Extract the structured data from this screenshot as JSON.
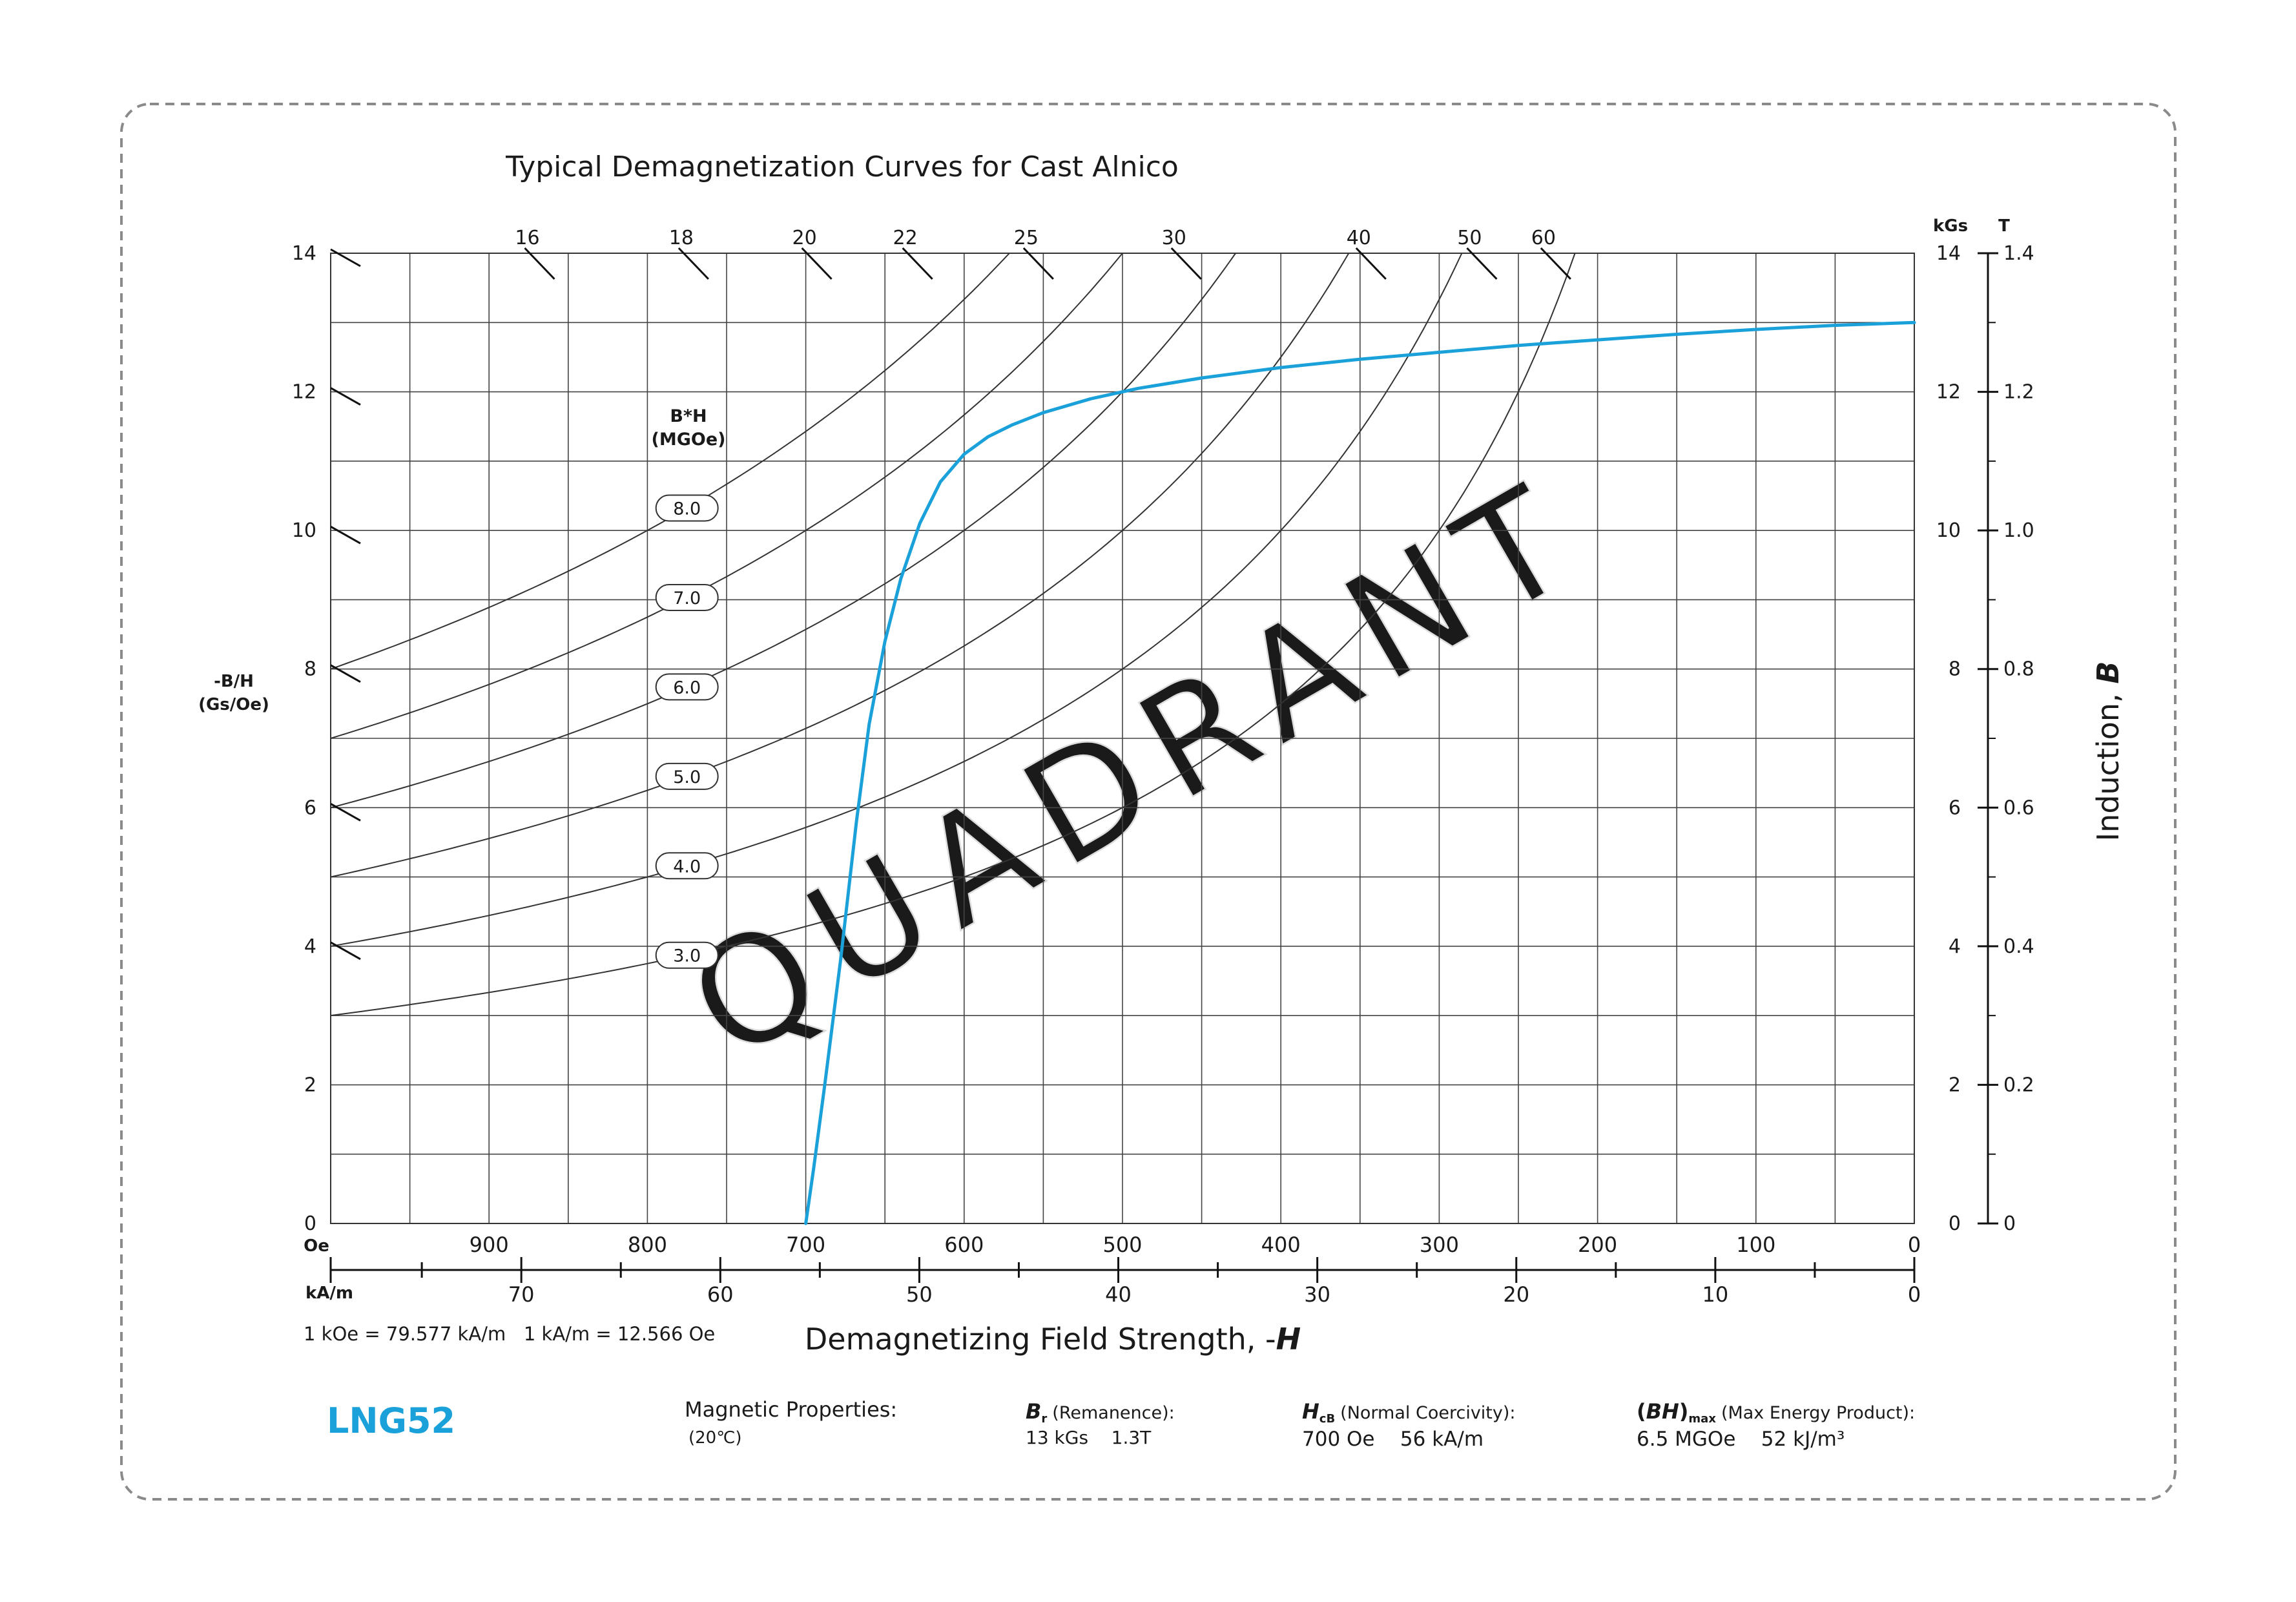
{
  "chart_data": {
    "type": "line",
    "title": "Typical Demagnetization Curves for Cast Alnico",
    "xlabel_text": "Demagnetizing Field Strength, -",
    "xlabel_symbol": "H",
    "ylabel_text": "Induction, ",
    "ylabel_symbol": "B",
    "x_unit_oe": "Oe",
    "x_unit_ka": "kA/m",
    "x_ticks_oe": [
      900,
      800,
      700,
      600,
      500,
      400,
      300,
      200,
      100,
      0
    ],
    "x_ticks_ka": [
      70,
      60,
      50,
      40,
      30,
      20,
      10,
      0
    ],
    "xlim_oe": [
      1000,
      0
    ],
    "y_unit_left_label": "-B/H",
    "y_unit_left_sub": "(Gs/Oe)",
    "y_unit_kgs": "kGs",
    "y_unit_t": "T",
    "y_ticks_kgs": [
      0,
      2,
      4,
      6,
      8,
      10,
      12,
      14
    ],
    "y_ticks_left": [
      0,
      2,
      4,
      6,
      8,
      10,
      12,
      14
    ],
    "y_ticks_t": [
      "0",
      "0.2",
      "0.4",
      "0.6",
      "0.8",
      "1.0",
      "1.2",
      "1.4"
    ],
    "ylim_kgs": [
      0,
      14
    ],
    "grid": true,
    "permeance_top_labels": [
      "16",
      "18",
      "20",
      "22",
      "25",
      "30",
      "40",
      "50",
      "60"
    ],
    "permeance_slopes": [
      16,
      18,
      20,
      22,
      25,
      30,
      40,
      50,
      60
    ],
    "permeance_left_slopes": [
      14,
      12,
      10,
      8,
      6,
      4
    ],
    "bh_header": "B*H",
    "bh_header_sub": "(MGOe)",
    "bh_labels": [
      "8.0",
      "7.0",
      "6.0",
      "5.0",
      "4.0",
      "3.0"
    ],
    "bh_values": [
      8.0,
      7.0,
      6.0,
      5.0,
      4.0,
      3.0
    ],
    "series": [
      {
        "color": "#1BA1DA",
        "x_oe": [
          700,
          695,
          688,
          678,
          668,
          660,
          650,
          640,
          628,
          615,
          600,
          585,
          570,
          550,
          520,
          490,
          450,
          400,
          350,
          300,
          250,
          200,
          150,
          100,
          50,
          0
        ],
        "y_kgs": [
          0,
          0.8,
          2.0,
          3.8,
          5.8,
          7.2,
          8.4,
          9.3,
          10.1,
          10.7,
          11.1,
          11.35,
          11.52,
          11.7,
          11.9,
          12.05,
          12.2,
          12.35,
          12.47,
          12.57,
          12.67,
          12.75,
          12.83,
          12.9,
          12.96,
          13.0
        ]
      }
    ],
    "watermark": "QUADRANT"
  },
  "conversion_note": "1 kOe = 79.577 kA/m   1 kA/m = 12.566 Oe",
  "material": {
    "name": "LNG52",
    "name_color": "#1BA1DA"
  },
  "properties": {
    "header": "Magnetic Properties:",
    "temperature": "(20℃)",
    "br_symbol": "B",
    "br_sub": "r",
    "br_label": "(Remanence):",
    "br_value": "13 kGs    1.3T",
    "hcb_symbol": "H",
    "hcb_sub": "cB",
    "hcb_label": "(Normal Coercivity):",
    "hcb_value": "700 Oe    56 kA/m",
    "bh_symbol": "BH",
    "bh_sub": "max",
    "bh_label": "(Max Energy Product):",
    "bh_value": "6.5 MGOe    52 kJ/m³"
  }
}
